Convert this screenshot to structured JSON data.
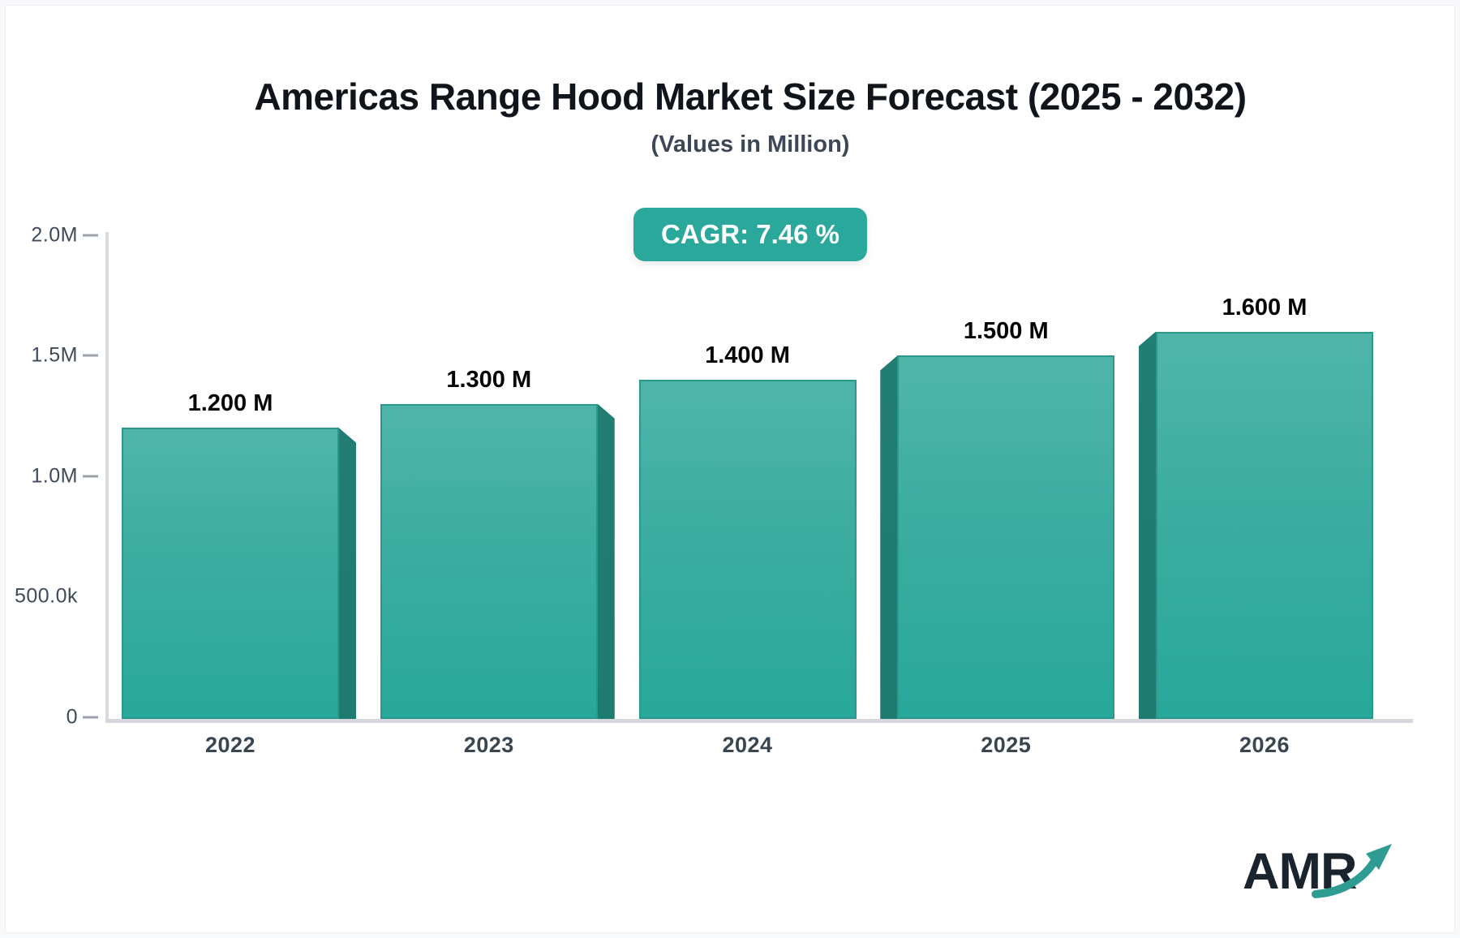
{
  "header": {
    "title": "Americas Range Hood Market Size Forecast (2025 - 2032)",
    "subtitle": "(Values in Million)",
    "cagr_badge": "CAGR: 7.46 %"
  },
  "chart_data": {
    "type": "bar",
    "title": "Americas Range Hood Market Size Forecast (2025 - 2032)",
    "subtitle": "(Values in Million)",
    "categories": [
      "2022",
      "2023",
      "2024",
      "2025",
      "2026"
    ],
    "values": [
      1200000,
      1300000,
      1400000,
      1500000,
      1600000
    ],
    "bar_labels": [
      "1.200 M",
      "1.300 M",
      "1.400 M",
      "1.500 M",
      "1.600 M"
    ],
    "cagr_percent": 7.46,
    "ylim": [
      0,
      2000000
    ],
    "y_ticks": [
      {
        "label": "2.0M",
        "value": 2000000,
        "dash": true
      },
      {
        "label": "1.5M",
        "value": 1500000,
        "dash": true
      },
      {
        "label": "1.0M",
        "value": 1000000,
        "dash": true
      },
      {
        "label": "500.0k",
        "value": 500000,
        "dash": false
      },
      {
        "label": "0",
        "value": 0,
        "dash": true
      }
    ],
    "grid": false,
    "legend": "none",
    "colors": {
      "bar_gradient_top": "#50b5a9",
      "bar_gradient_bottom": "#28a89a",
      "bar_side_shadow": "#1f7b70",
      "bar_border": "#2b988c",
      "badge_background": "#2aa89b",
      "axis_line": "#d5d8dc",
      "value_label": "#050505",
      "tick_label": "#3f4b59"
    }
  },
  "logo": {
    "text": "AMR",
    "text_color": "#1a242f",
    "arrow_color": "#2e9c92"
  }
}
